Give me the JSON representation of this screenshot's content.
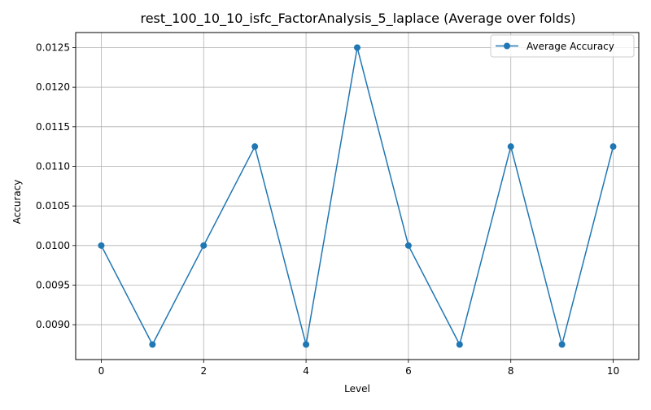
{
  "chart_data": {
    "type": "line",
    "title": "rest_100_10_10_isfc_FactorAnalysis_5_laplace (Average over folds)",
    "xlabel": "Level",
    "ylabel": "Accuracy",
    "x": [
      0,
      1,
      2,
      3,
      4,
      5,
      6,
      7,
      8,
      9,
      10
    ],
    "series": [
      {
        "name": "Average Accuracy",
        "color": "#1f77b4",
        "marker": "circle",
        "values": [
          0.01,
          0.00875,
          0.01,
          0.01125,
          0.00875,
          0.0125,
          0.01,
          0.00875,
          0.01125,
          0.00875,
          0.01125
        ]
      }
    ],
    "xlim": [
      -0.5,
      10.5
    ],
    "ylim": [
      0.00856,
      0.01269
    ],
    "xticks": [
      0,
      2,
      4,
      6,
      8,
      10
    ],
    "xtick_labels": [
      "0",
      "2",
      "4",
      "6",
      "8",
      "10"
    ],
    "yticks": [
      0.009,
      0.0095,
      0.01,
      0.0105,
      0.011,
      0.0115,
      0.012,
      0.0125
    ],
    "ytick_labels": [
      "0.0090",
      "0.0095",
      "0.0100",
      "0.0105",
      "0.0110",
      "0.0115",
      "0.0120",
      "0.0125"
    ],
    "grid": true,
    "legend_position": "top-right"
  }
}
